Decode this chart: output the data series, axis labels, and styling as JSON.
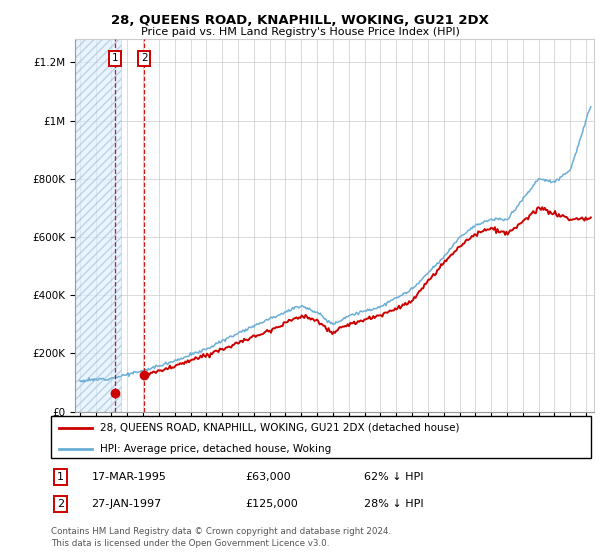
{
  "title": "28, QUEENS ROAD, KNAPHILL, WOKING, GU21 2DX",
  "subtitle": "Price paid vs. HM Land Registry's House Price Index (HPI)",
  "ylabel_ticks": [
    "£0",
    "£200K",
    "£400K",
    "£600K",
    "£800K",
    "£1M",
    "£1.2M"
  ],
  "ytick_vals": [
    0,
    200000,
    400000,
    600000,
    800000,
    1000000,
    1200000
  ],
  "ylim": [
    0,
    1300000
  ],
  "xlim_start": 1992.7,
  "xlim_end": 2025.5,
  "hpi_color": "#6baed6",
  "house_color": "#cc0000",
  "sale1_date": 1995.21,
  "sale1_price": 63000,
  "sale2_date": 1997.08,
  "sale2_price": 125000,
  "legend_label1": "28, QUEENS ROAD, KNAPHILL, WOKING, GU21 2DX (detached house)",
  "legend_label2": "HPI: Average price, detached house, Woking",
  "footnote": "Contains HM Land Registry data © Crown copyright and database right 2024.\nThis data is licensed under the Open Government Licence v3.0.",
  "background_color": "#ffffff",
  "grid_color": "#cccccc",
  "hatch_end": 1995.6
}
